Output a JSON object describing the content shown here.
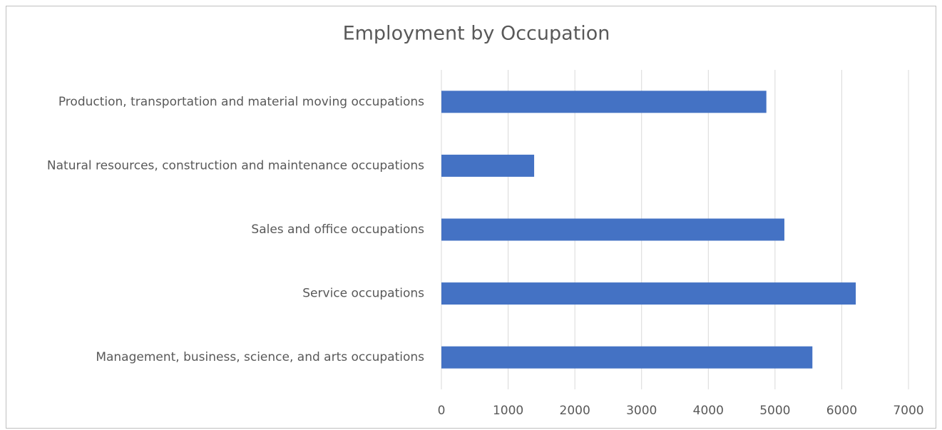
{
  "chart_data": {
    "type": "bar",
    "orientation": "horizontal",
    "title": "Employment by Occupation",
    "categories": [
      "Management, business, science, and arts occupations",
      "Service occupations",
      "Sales and office occupations",
      "Natural resources, construction and maintenance occupations",
      "Production, transportation and material moving occupations"
    ],
    "values": [
      5560,
      6210,
      5140,
      1390,
      4870
    ],
    "color": "#4472c4",
    "xlim": [
      0,
      7000
    ],
    "xticks": [
      0,
      1000,
      2000,
      3000,
      4000,
      5000,
      6000,
      7000
    ],
    "grid": true
  }
}
